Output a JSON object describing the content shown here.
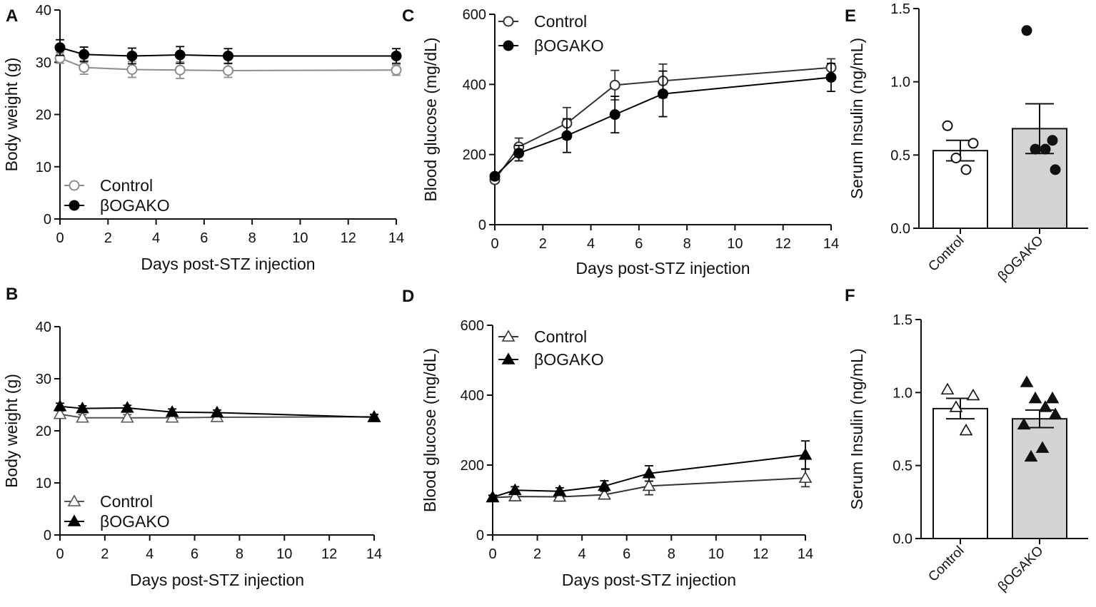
{
  "chart_data": [
    {
      "panel": "A",
      "type": "line",
      "xlabel": "Days post-STZ injection",
      "ylabel": "Body weight (g)",
      "xlim": [
        0,
        14
      ],
      "ylim": [
        0,
        40
      ],
      "xticks": [
        0,
        2,
        4,
        6,
        8,
        10,
        12,
        14
      ],
      "yticks": [
        0,
        10,
        20,
        30,
        40
      ],
      "legend_position": "bottom-left",
      "series": [
        {
          "name": "Control",
          "marker": "open-circle",
          "color": "#8c8c8c",
          "x": [
            0,
            1,
            3,
            5,
            7,
            14
          ],
          "y": [
            30.8,
            29.0,
            28.6,
            28.5,
            28.4,
            28.5
          ],
          "err": [
            1.0,
            1.3,
            1.5,
            1.6,
            1.3,
            1.0
          ]
        },
        {
          "name": "βOGAKO",
          "marker": "filled-circle",
          "color": "#000000",
          "x": [
            0,
            1,
            3,
            5,
            7,
            14
          ],
          "y": [
            32.8,
            31.5,
            31.2,
            31.4,
            31.2,
            31.2
          ],
          "err": [
            1.5,
            1.4,
            1.5,
            1.6,
            1.4,
            1.4
          ]
        }
      ]
    },
    {
      "panel": "B",
      "type": "line",
      "xlabel": "Days post-STZ injection",
      "ylabel": "Body weight (g)",
      "xlim": [
        0,
        14
      ],
      "ylim": [
        0,
        40
      ],
      "xticks": [
        0,
        2,
        4,
        6,
        8,
        10,
        12,
        14
      ],
      "yticks": [
        0,
        10,
        20,
        30,
        40
      ],
      "legend_position": "bottom-left",
      "series": [
        {
          "name": "Control",
          "marker": "open-triangle",
          "color": "#555555",
          "x": [
            0,
            1,
            3,
            5,
            7,
            14
          ],
          "y": [
            23.2,
            22.5,
            22.5,
            22.5,
            22.6,
            22.7
          ],
          "err": [
            0.6,
            0.6,
            0.6,
            0.6,
            0.6,
            0.5
          ]
        },
        {
          "name": "βOGAKO",
          "marker": "filled-triangle",
          "color": "#000000",
          "x": [
            0,
            1,
            3,
            5,
            7,
            14
          ],
          "y": [
            24.7,
            24.3,
            24.4,
            23.6,
            23.5,
            22.6
          ],
          "err": [
            0.6,
            0.5,
            0.5,
            0.6,
            0.5,
            0.5
          ]
        }
      ]
    },
    {
      "panel": "C",
      "type": "line",
      "xlabel": "Days post-STZ injection",
      "ylabel": "Blood glucose (mg/dL)",
      "xlim": [
        0,
        14
      ],
      "ylim": [
        0,
        600
      ],
      "xticks": [
        0,
        2,
        4,
        6,
        8,
        10,
        12,
        14
      ],
      "yticks": [
        0,
        200,
        400,
        600
      ],
      "legend_position": "top-left",
      "series": [
        {
          "name": "Control",
          "marker": "open-circle",
          "color": "#333333",
          "x": [
            0,
            1,
            3,
            5,
            7,
            14
          ],
          "y": [
            128,
            222,
            289,
            398,
            410,
            448
          ],
          "err": [
            8,
            25,
            45,
            42,
            48,
            25
          ]
        },
        {
          "name": "βOGAKO",
          "marker": "filled-circle",
          "color": "#000000",
          "x": [
            0,
            1,
            3,
            5,
            7,
            14
          ],
          "y": [
            138,
            204,
            254,
            314,
            373,
            420
          ],
          "err": [
            8,
            22,
            48,
            52,
            65,
            40
          ]
        }
      ]
    },
    {
      "panel": "D",
      "type": "line",
      "xlabel": "Days post-STZ injection",
      "ylabel": "Blood glucose (mg/dL)",
      "xlim": [
        0,
        14
      ],
      "ylim": [
        0,
        600
      ],
      "xticks": [
        0,
        2,
        4,
        6,
        8,
        10,
        12,
        14
      ],
      "yticks": [
        0,
        200,
        400,
        600
      ],
      "legend_position": "top-left",
      "series": [
        {
          "name": "Control",
          "marker": "open-triangle",
          "color": "#333333",
          "x": [
            0,
            1,
            3,
            5,
            7,
            14
          ],
          "y": [
            107,
            110,
            109,
            115,
            140,
            163
          ],
          "err": [
            6,
            8,
            8,
            12,
            25,
            25
          ]
        },
        {
          "name": "βOGAKO",
          "marker": "filled-triangle",
          "color": "#000000",
          "x": [
            0,
            1,
            3,
            5,
            7,
            14
          ],
          "y": [
            108,
            128,
            125,
            140,
            176,
            229
          ],
          "err": [
            6,
            10,
            10,
            15,
            22,
            40
          ]
        }
      ]
    },
    {
      "panel": "E",
      "type": "bar",
      "ylabel": "Serum Insulin (ng/mL)",
      "ylim": [
        0,
        1.5
      ],
      "yticks": [
        0.0,
        0.5,
        1.0,
        1.5
      ],
      "categories": [
        "Control",
        "βOGAKO"
      ],
      "values": [
        0.53,
        0.68
      ],
      "sem": [
        0.07,
        0.17
      ],
      "bar_colors": [
        "#ffffff",
        "#d3d3d3"
      ],
      "points": [
        {
          "marker": "open-circle",
          "values": [
            0.7,
            0.58,
            0.48,
            0.4
          ]
        },
        {
          "marker": "filled-circle",
          "values": [
            1.35,
            0.6,
            0.54,
            0.54,
            0.4
          ]
        }
      ]
    },
    {
      "panel": "F",
      "type": "bar",
      "ylabel": "Serum Insulin (ng/mL)",
      "ylim": [
        0,
        1.5
      ],
      "yticks": [
        0.0,
        0.5,
        1.0,
        1.5
      ],
      "categories": [
        "Control",
        "βOGAKO"
      ],
      "values": [
        0.89,
        0.82
      ],
      "sem": [
        0.07,
        0.06
      ],
      "bar_colors": [
        "#ffffff",
        "#d3d3d3"
      ],
      "points": [
        {
          "marker": "open-triangle",
          "values": [
            1.02,
            0.98,
            0.9,
            0.74
          ]
        },
        {
          "marker": "filled-triangle",
          "values": [
            1.07,
            0.96,
            0.96,
            0.9,
            0.85,
            0.78,
            0.62,
            0.56
          ]
        }
      ]
    }
  ]
}
